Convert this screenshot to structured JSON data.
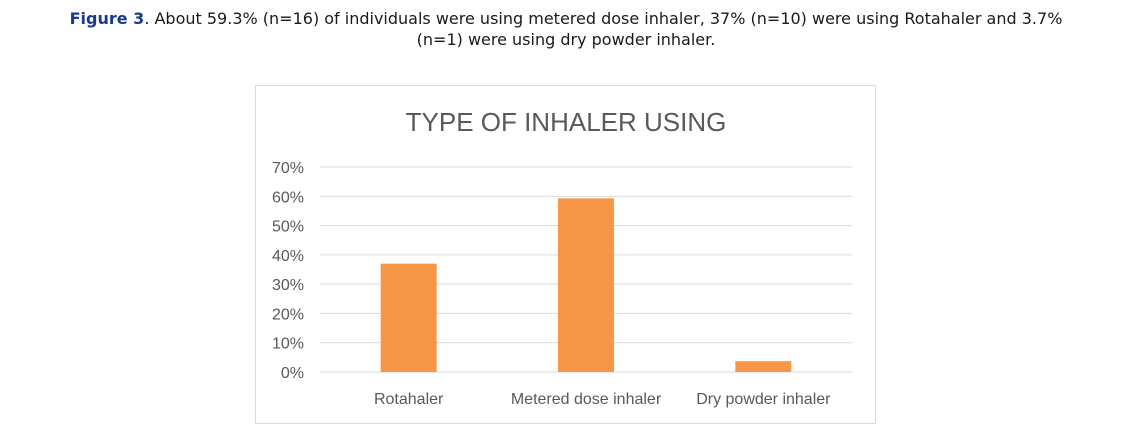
{
  "caption": {
    "label": "Figure 3",
    "line1": ". About 59.3% (n=16) of individuals were using metered dose inhaler, 37% (n=10) were using Rotahaler and 3.7%",
    "line2": "(n=1) were using dry powder inhaler."
  },
  "chart_data": {
    "type": "bar",
    "title": "TYPE OF INHALER USING",
    "xlabel": "",
    "ylabel": "",
    "categories": [
      "Rotahaler",
      "Metered dose inhaler",
      "Dry powder inhaler"
    ],
    "values": [
      37.0,
      59.3,
      3.7
    ],
    "ylim": [
      0,
      70
    ],
    "yticks": [
      "0%",
      "10%",
      "20%",
      "30%",
      "40%",
      "50%",
      "60%",
      "70%"
    ],
    "grid": true,
    "legend": "none",
    "bar_color": "#f79646"
  }
}
